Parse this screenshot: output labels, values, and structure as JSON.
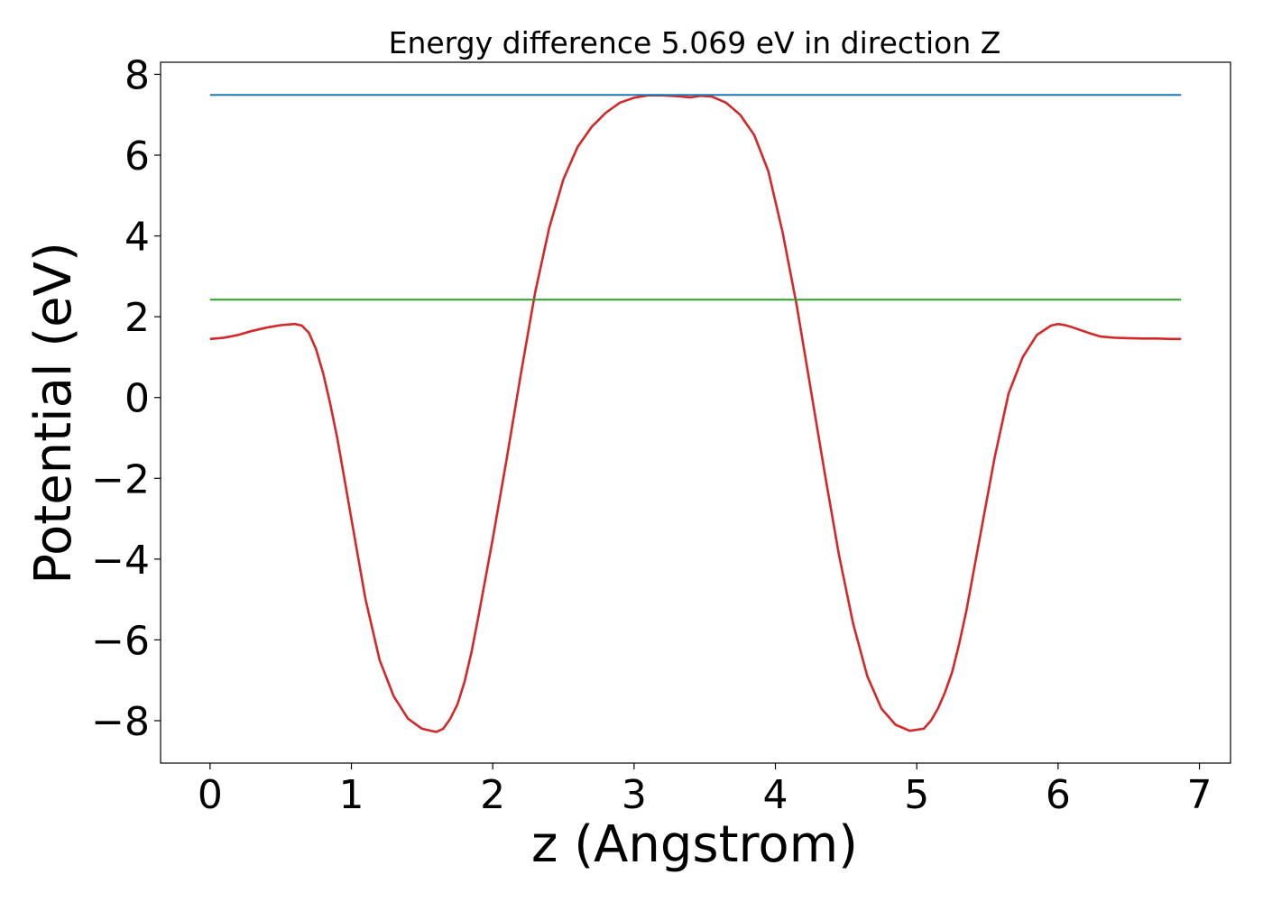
{
  "chart_data": {
    "type": "line",
    "title": "Energy difference 5.069 eV in direction Z",
    "xlabel": "z (Angstrom)",
    "ylabel": "Potential (eV)",
    "xlim": [
      -0.35,
      7.22
    ],
    "ylim": [
      -9.05,
      8.3
    ],
    "xticks": [
      0,
      1,
      2,
      3,
      4,
      5,
      6,
      7
    ],
    "xtick_labels": [
      "0",
      "1",
      "2",
      "3",
      "4",
      "5",
      "6",
      "7"
    ],
    "yticks": [
      -8,
      -6,
      -4,
      -2,
      0,
      2,
      4,
      6,
      8
    ],
    "ytick_labels": [
      "−8",
      "−6",
      "−4",
      "−2",
      "0",
      "2",
      "4",
      "6",
      "8"
    ],
    "grid": false,
    "series": [
      {
        "color": "#d62728",
        "x": [
          0,
          0.1,
          0.2,
          0.3,
          0.4,
          0.5,
          0.6,
          0.65,
          0.7,
          0.75,
          0.8,
          0.85,
          0.9,
          0.95,
          1.0,
          1.05,
          1.1,
          1.2,
          1.3,
          1.4,
          1.5,
          1.6,
          1.65,
          1.7,
          1.75,
          1.8,
          1.85,
          1.9,
          2.0,
          2.1,
          2.2,
          2.3,
          2.4,
          2.5,
          2.6,
          2.7,
          2.8,
          2.9,
          3.0,
          3.1,
          3.2,
          3.3,
          3.4,
          3.47,
          3.55,
          3.65,
          3.75,
          3.85,
          3.95,
          4.05,
          4.15,
          4.25,
          4.35,
          4.45,
          4.55,
          4.65,
          4.75,
          4.85,
          4.95,
          5.05,
          5.1,
          5.15,
          5.2,
          5.25,
          5.3,
          5.35,
          5.45,
          5.55,
          5.65,
          5.75,
          5.85,
          5.95,
          6.0,
          6.05,
          6.1,
          6.15,
          6.2,
          6.25,
          6.3,
          6.4,
          6.5,
          6.6,
          6.7,
          6.8,
          6.87
        ],
        "y": [
          1.45,
          1.48,
          1.55,
          1.65,
          1.73,
          1.79,
          1.82,
          1.78,
          1.6,
          1.2,
          0.6,
          -0.15,
          -1.0,
          -2.0,
          -3.0,
          -4.0,
          -5.0,
          -6.5,
          -7.4,
          -7.95,
          -8.2,
          -8.28,
          -8.2,
          -7.95,
          -7.6,
          -7.05,
          -6.3,
          -5.4,
          -3.5,
          -1.5,
          0.6,
          2.6,
          4.2,
          5.4,
          6.2,
          6.7,
          7.05,
          7.3,
          7.42,
          7.48,
          7.48,
          7.46,
          7.43,
          7.47,
          7.45,
          7.3,
          7.0,
          6.5,
          5.6,
          4.1,
          2.3,
          0.2,
          -1.9,
          -3.9,
          -5.6,
          -6.9,
          -7.7,
          -8.1,
          -8.25,
          -8.2,
          -8.0,
          -7.7,
          -7.3,
          -6.8,
          -6.1,
          -5.3,
          -3.4,
          -1.5,
          0.1,
          1.0,
          1.55,
          1.78,
          1.82,
          1.79,
          1.74,
          1.68,
          1.62,
          1.56,
          1.51,
          1.48,
          1.47,
          1.46,
          1.46,
          1.45,
          1.45
        ]
      },
      {
        "color": "#1f77b4",
        "x": [
          0,
          6.87
        ],
        "y": [
          7.49,
          7.49
        ]
      },
      {
        "color": "#2ca02c",
        "x": [
          0,
          6.87
        ],
        "y": [
          2.42,
          2.42
        ]
      }
    ]
  }
}
